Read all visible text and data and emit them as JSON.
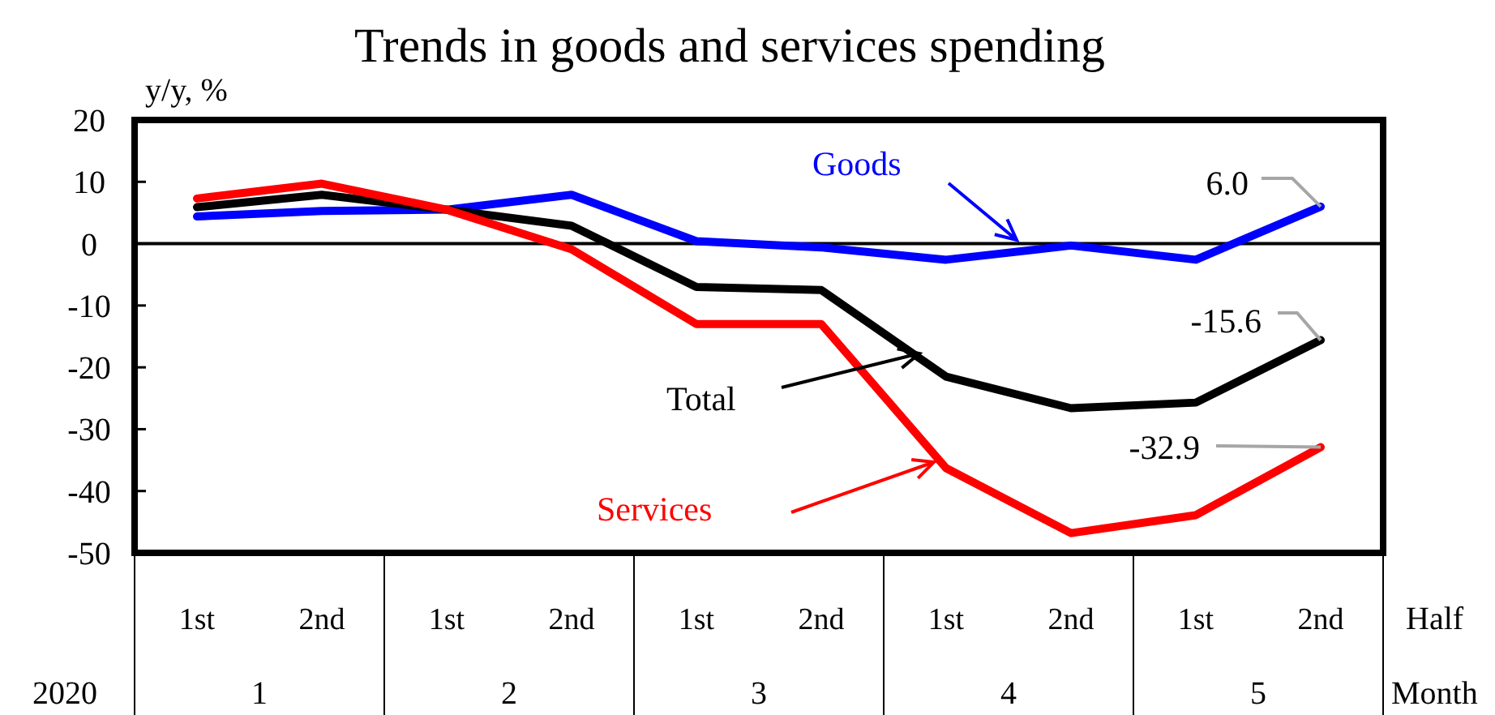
{
  "chart_data": {
    "type": "line",
    "title": "Trends in goods and services spending",
    "ylabel": "y/y, %",
    "xlabel": "Half",
    "categories": [
      "1st",
      "2nd",
      "1st",
      "2nd",
      "1st",
      "2nd",
      "1st",
      "2nd",
      "1st",
      "2nd"
    ],
    "annotations": [
      "2020",
      "1",
      "2",
      "3",
      "4",
      "5",
      "Month"
    ],
    "ylim": [
      -50,
      20
    ],
    "yticks": [
      -50,
      -40,
      -30,
      -20,
      -10,
      0,
      10,
      20
    ],
    "grid": false,
    "legend": "center",
    "marker": "none",
    "line_style": "solid",
    "ref_lines": [
      {
        "axis": "y",
        "value": 0,
        "color": "#000000"
      }
    ],
    "series": [
      {
        "name": "Goods",
        "color": "#0000ff",
        "values": [
          4.4,
          5.3,
          5.5,
          7.9,
          0.4,
          -0.6,
          -2.6,
          -0.3,
          -2.6,
          6.0
        ],
        "value_labels": [
          null,
          null,
          null,
          null,
          null,
          null,
          null,
          null,
          null,
          "6.0"
        ]
      },
      {
        "name": "Total",
        "color": "#000000",
        "values": [
          5.9,
          7.9,
          5.5,
          2.9,
          -7.0,
          -7.5,
          -21.5,
          -26.6,
          -25.7,
          -15.6
        ],
        "value_labels": [
          null,
          null,
          null,
          null,
          null,
          null,
          null,
          null,
          null,
          "-15.6"
        ]
      },
      {
        "name": "Services",
        "color": "#ff0000",
        "values": [
          7.3,
          9.7,
          5.5,
          -0.9,
          -13.0,
          -13.0,
          -36.3,
          -46.8,
          -43.9,
          -32.9
        ],
        "value_labels": [
          null,
          null,
          null,
          null,
          null,
          null,
          null,
          null,
          null,
          "-32.9"
        ]
      }
    ]
  }
}
